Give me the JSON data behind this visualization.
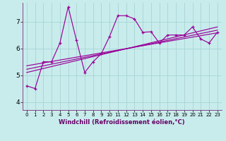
{
  "xlabel": "Windchill (Refroidissement éolien,°C)",
  "bg_color": "#c8ecec",
  "line_color": "#990099",
  "grid_color": "#a8d4d4",
  "xlim": [
    -0.5,
    23.5
  ],
  "ylim": [
    3.7,
    7.7
  ],
  "yticks": [
    4,
    5,
    6,
    7
  ],
  "xticks": [
    0,
    1,
    2,
    3,
    4,
    5,
    6,
    7,
    8,
    9,
    10,
    11,
    12,
    13,
    14,
    15,
    16,
    17,
    18,
    19,
    20,
    21,
    22,
    23
  ],
  "main_x": [
    0,
    1,
    2,
    3,
    4,
    5,
    6,
    7,
    8,
    9,
    10,
    11,
    12,
    13,
    14,
    15,
    16,
    17,
    18,
    19,
    20,
    21,
    22,
    23
  ],
  "main_y": [
    4.6,
    4.5,
    5.5,
    5.5,
    6.2,
    7.55,
    6.3,
    5.1,
    5.5,
    5.8,
    6.45,
    7.22,
    7.22,
    7.1,
    6.6,
    6.62,
    6.2,
    6.5,
    6.5,
    6.5,
    6.8,
    6.35,
    6.2,
    6.6
  ],
  "reg_lines": [
    {
      "x0": 0,
      "y0": 5.35,
      "x1": 23,
      "y1": 6.58
    },
    {
      "x0": 0,
      "y0": 5.22,
      "x1": 23,
      "y1": 6.68
    },
    {
      "x0": 0,
      "y0": 5.1,
      "x1": 23,
      "y1": 6.8
    }
  ],
  "xlabel_fontsize": 6,
  "xlabel_color": "#660066",
  "tick_fontsize_x": 5,
  "tick_fontsize_y": 6.5
}
